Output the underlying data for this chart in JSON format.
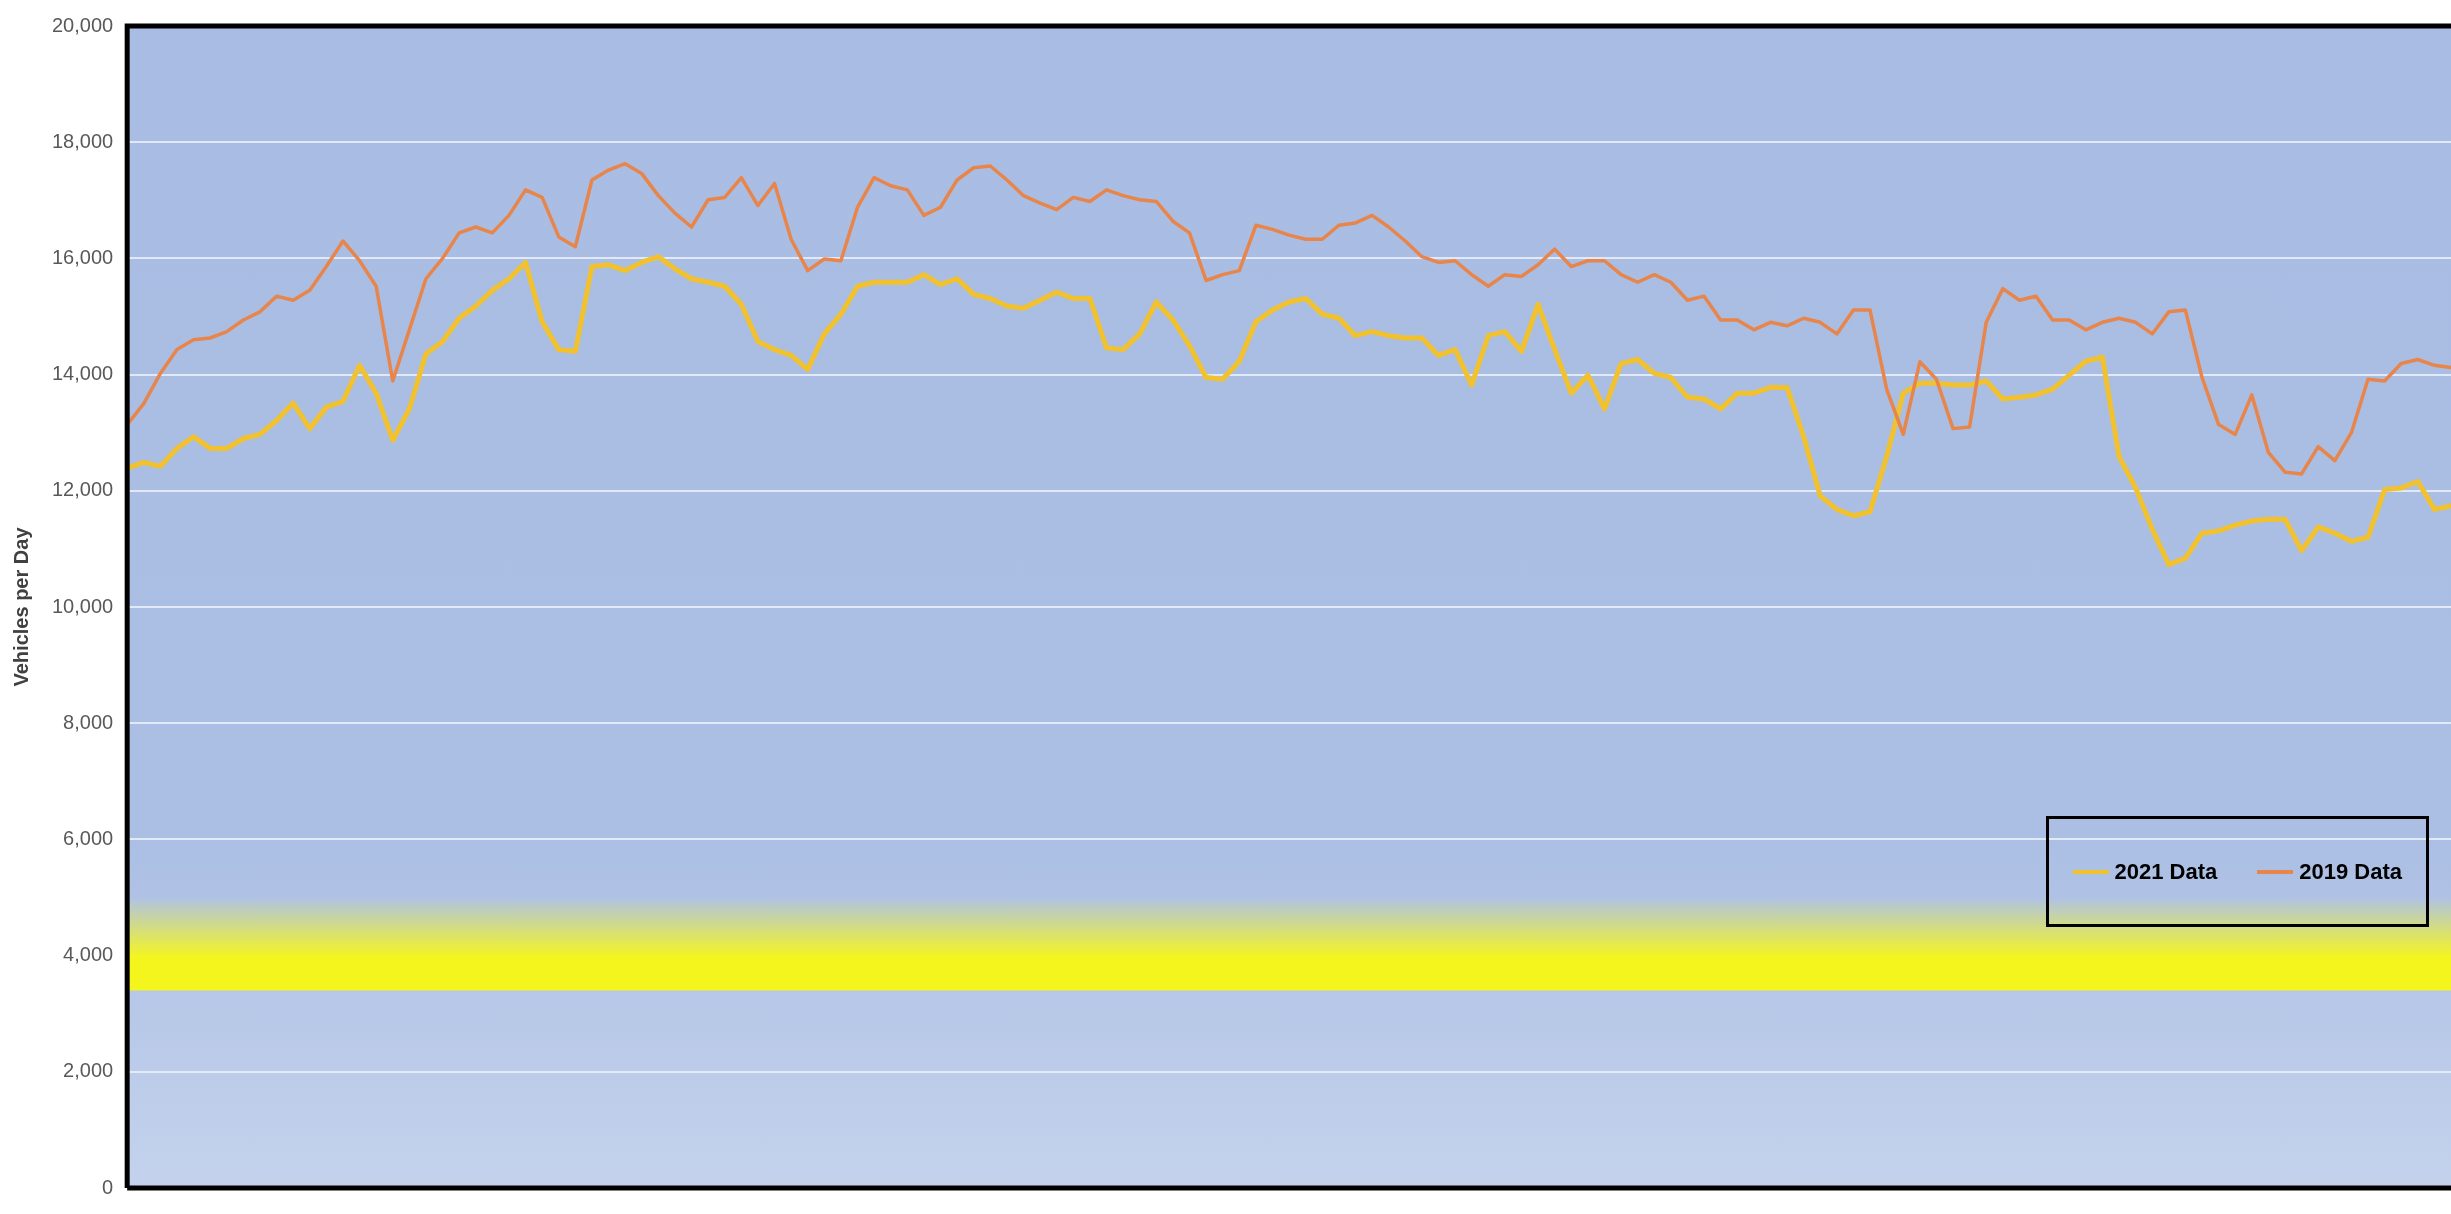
{
  "chart_data": {
    "type": "line",
    "ylabel": "Vehicles per Day",
    "categories": [
      null,
      null,
      null,
      null,
      null,
      null,
      null,
      null,
      null,
      null,
      null,
      null,
      null,
      null,
      null,
      null,
      null,
      null,
      null,
      null,
      null,
      null,
      null,
      null,
      null,
      null,
      null,
      null,
      null,
      null,
      null,
      null,
      null,
      null,
      null,
      null,
      null,
      null,
      null,
      null,
      null,
      null,
      null,
      null,
      null,
      null,
      null,
      null,
      null,
      null,
      null,
      null,
      null,
      null,
      null,
      null,
      null,
      null,
      null,
      null,
      null,
      null,
      null,
      null,
      null,
      null,
      null,
      null,
      null,
      null,
      null,
      null,
      null,
      null,
      null,
      null,
      null,
      null,
      null,
      null,
      null,
      null,
      null,
      null,
      null,
      null,
      null,
      null,
      null,
      null,
      null,
      null,
      null,
      null,
      null,
      null,
      null,
      null,
      null,
      null,
      null,
      null,
      null,
      null,
      null,
      null,
      null,
      null,
      null,
      null,
      null,
      null,
      null,
      null,
      null,
      null,
      null,
      null,
      null,
      null,
      null,
      null,
      null,
      null,
      null,
      null,
      null,
      null,
      null,
      null,
      null,
      null,
      null,
      null,
      null,
      null,
      null,
      null,
      null,
      null,
      null
    ],
    "series": [
      {
        "name": "2021 Data",
        "color": "#f2c12e",
        "values": [
          12390,
          12490,
          12420,
          12730,
          12930,
          12730,
          12730,
          12900,
          12970,
          13210,
          13510,
          13070,
          13440,
          13540,
          14160,
          13680,
          12870,
          13410,
          14360,
          14570,
          14970,
          15180,
          15450,
          15650,
          15930,
          14910,
          14430,
          14400,
          15860,
          15890,
          15790,
          15930,
          16030,
          15820,
          15650,
          15590,
          15520,
          15210,
          14570,
          14430,
          14330,
          14090,
          14700,
          15040,
          15520,
          15590,
          15590,
          15590,
          15720,
          15550,
          15650,
          15380,
          15310,
          15180,
          15140,
          15280,
          15420,
          15310,
          15310,
          14460,
          14430,
          14700,
          15250,
          14940,
          14500,
          13950,
          13920,
          14230,
          14910,
          15110,
          15250,
          15310,
          15040,
          14970,
          14670,
          14740,
          14670,
          14630,
          14630,
          14330,
          14430,
          13820,
          14670,
          14740,
          14400,
          15210,
          14430,
          13680,
          13990,
          13410,
          14190,
          14260,
          14020,
          13950,
          13610,
          13580,
          13410,
          13680,
          13680,
          13780,
          13780,
          12930,
          11910,
          11680,
          11570,
          11640,
          12590,
          13680,
          13850,
          13850,
          13820,
          13820,
          13890,
          13580,
          13610,
          13650,
          13750,
          13990,
          14230,
          14300,
          12590,
          12050,
          11340,
          10730,
          10840,
          11270,
          11310,
          11410,
          11480,
          11510,
          11510,
          10970,
          11380,
          11270,
          11130,
          11200,
          12020,
          12050,
          12160,
          11680,
          11740
        ]
      },
      {
        "name": "2019 Data",
        "color": "#e8854a",
        "values": [
          13140,
          13500,
          14020,
          14430,
          14600,
          14630,
          14740,
          14940,
          15080,
          15350,
          15280,
          15450,
          15860,
          16300,
          15960,
          15520,
          13890,
          14770,
          15650,
          16000,
          16440,
          16540,
          16440,
          16740,
          17180,
          17050,
          16370,
          16200,
          17350,
          17520,
          17630,
          17460,
          17080,
          16780,
          16540,
          17010,
          17050,
          17390,
          16910,
          17290,
          16330,
          15790,
          15990,
          15960,
          16880,
          17390,
          17250,
          17180,
          16740,
          16880,
          17350,
          17560,
          17590,
          17350,
          17080,
          16950,
          16840,
          17050,
          16980,
          17180,
          17080,
          17010,
          16980,
          16640,
          16440,
          15620,
          15720,
          15790,
          16570,
          16500,
          16400,
          16330,
          16330,
          16570,
          16610,
          16740,
          16540,
          16300,
          16030,
          15930,
          15960,
          15720,
          15520,
          15720,
          15690,
          15890,
          16160,
          15860,
          15960,
          15960,
          15720,
          15590,
          15720,
          15590,
          15280,
          15350,
          14940,
          14940,
          14770,
          14900,
          14840,
          14970,
          14900,
          14700,
          15110,
          15110,
          13750,
          12970,
          14220,
          13920,
          13070,
          13100,
          14900,
          15480,
          15280,
          15350,
          14940,
          14940,
          14770,
          14900,
          14970,
          14900,
          14700,
          15080,
          15110,
          13950,
          13140,
          12970,
          13650,
          12660,
          12320,
          12290,
          12760,
          12520,
          13000,
          13920,
          13890,
          14190,
          14260,
          14160,
          14120
        ]
      }
    ],
    "ylim": [
      0,
      20000
    ],
    "yticks": [
      0,
      {
        "value": 2000,
        "label": "2,000"
      },
      {
        "value": 4000,
        "label": "4,000"
      },
      {
        "value": 6000,
        "label": "6,000"
      },
      {
        "value": 8000,
        "label": "8,000"
      },
      {
        "value": 10000,
        "label": "10,000"
      },
      {
        "value": 12000,
        "label": "12,000"
      },
      {
        "value": 14000,
        "label": "14,000"
      },
      {
        "value": 16000,
        "label": "16,000"
      },
      {
        "value": 18000,
        "label": "18,000"
      },
      {
        "value": 20000,
        "label": "20,000"
      }
    ],
    "tick_labels": "y",
    "grid": "y",
    "legend": "bottom right",
    "marker": "none",
    "line_style": "solid",
    "bands": [
      {
        "axis": "y",
        "from": 3400,
        "to": 5000,
        "color": "#f5f51e"
      }
    ]
  }
}
